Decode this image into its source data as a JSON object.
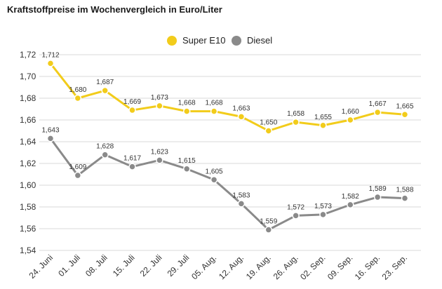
{
  "title": "Kraftstoffpreise im Wochenvergleich in Euro/Liter",
  "colors": {
    "super": "#f2cc1b",
    "diesel": "#8a8a8a",
    "grid": "#d9d9d9",
    "axis": "#555555"
  },
  "chart_data": {
    "type": "line",
    "title": "Kraftstoffpreise im Wochenvergleich in Euro/Liter",
    "xlabel": "",
    "ylabel": "",
    "ylim": [
      1.54,
      1.72
    ],
    "yticks": [
      "1,54",
      "1,56",
      "1,58",
      "1,60",
      "1,62",
      "1,64",
      "1,66",
      "1,68",
      "1,70",
      "1,72"
    ],
    "yticks_values": [
      1.54,
      1.56,
      1.58,
      1.6,
      1.62,
      1.64,
      1.66,
      1.68,
      1.7,
      1.72
    ],
    "categories": [
      "24. Juni",
      "01. Juli",
      "08. Juli",
      "15. Juli",
      "22. Juli",
      "29. Juli",
      "05. Aug.",
      "12. Aug.",
      "19. Aug.",
      "26. Aug.",
      "02. Sep.",
      "09. Sep.",
      "16. Sep.",
      "23. Sep."
    ],
    "grid": true,
    "legend_position": "top-center",
    "series": [
      {
        "name": "Super E10",
        "color": "#f2cc1b",
        "values": [
          1.712,
          1.68,
          1.687,
          1.669,
          1.673,
          1.668,
          1.668,
          1.663,
          1.65,
          1.658,
          1.655,
          1.66,
          1.667,
          1.665
        ],
        "labels": [
          "1,712",
          "1,680",
          "1,687",
          "1,669",
          "1,673",
          "1,668",
          "1,668",
          "1,663",
          "1,650",
          "1,658",
          "1,655",
          "1,660",
          "1,667",
          "1,665"
        ]
      },
      {
        "name": "Diesel",
        "color": "#8a8a8a",
        "values": [
          1.643,
          1.609,
          1.628,
          1.617,
          1.623,
          1.615,
          1.605,
          1.583,
          1.559,
          1.572,
          1.573,
          1.582,
          1.589,
          1.588
        ],
        "labels": [
          "1,643",
          "1,609",
          "1,628",
          "1,617",
          "1,623",
          "1,615",
          "1,605",
          "1,583",
          "1,559",
          "1,572",
          "1,573",
          "1,582",
          "1,589",
          "1,588"
        ]
      }
    ]
  }
}
